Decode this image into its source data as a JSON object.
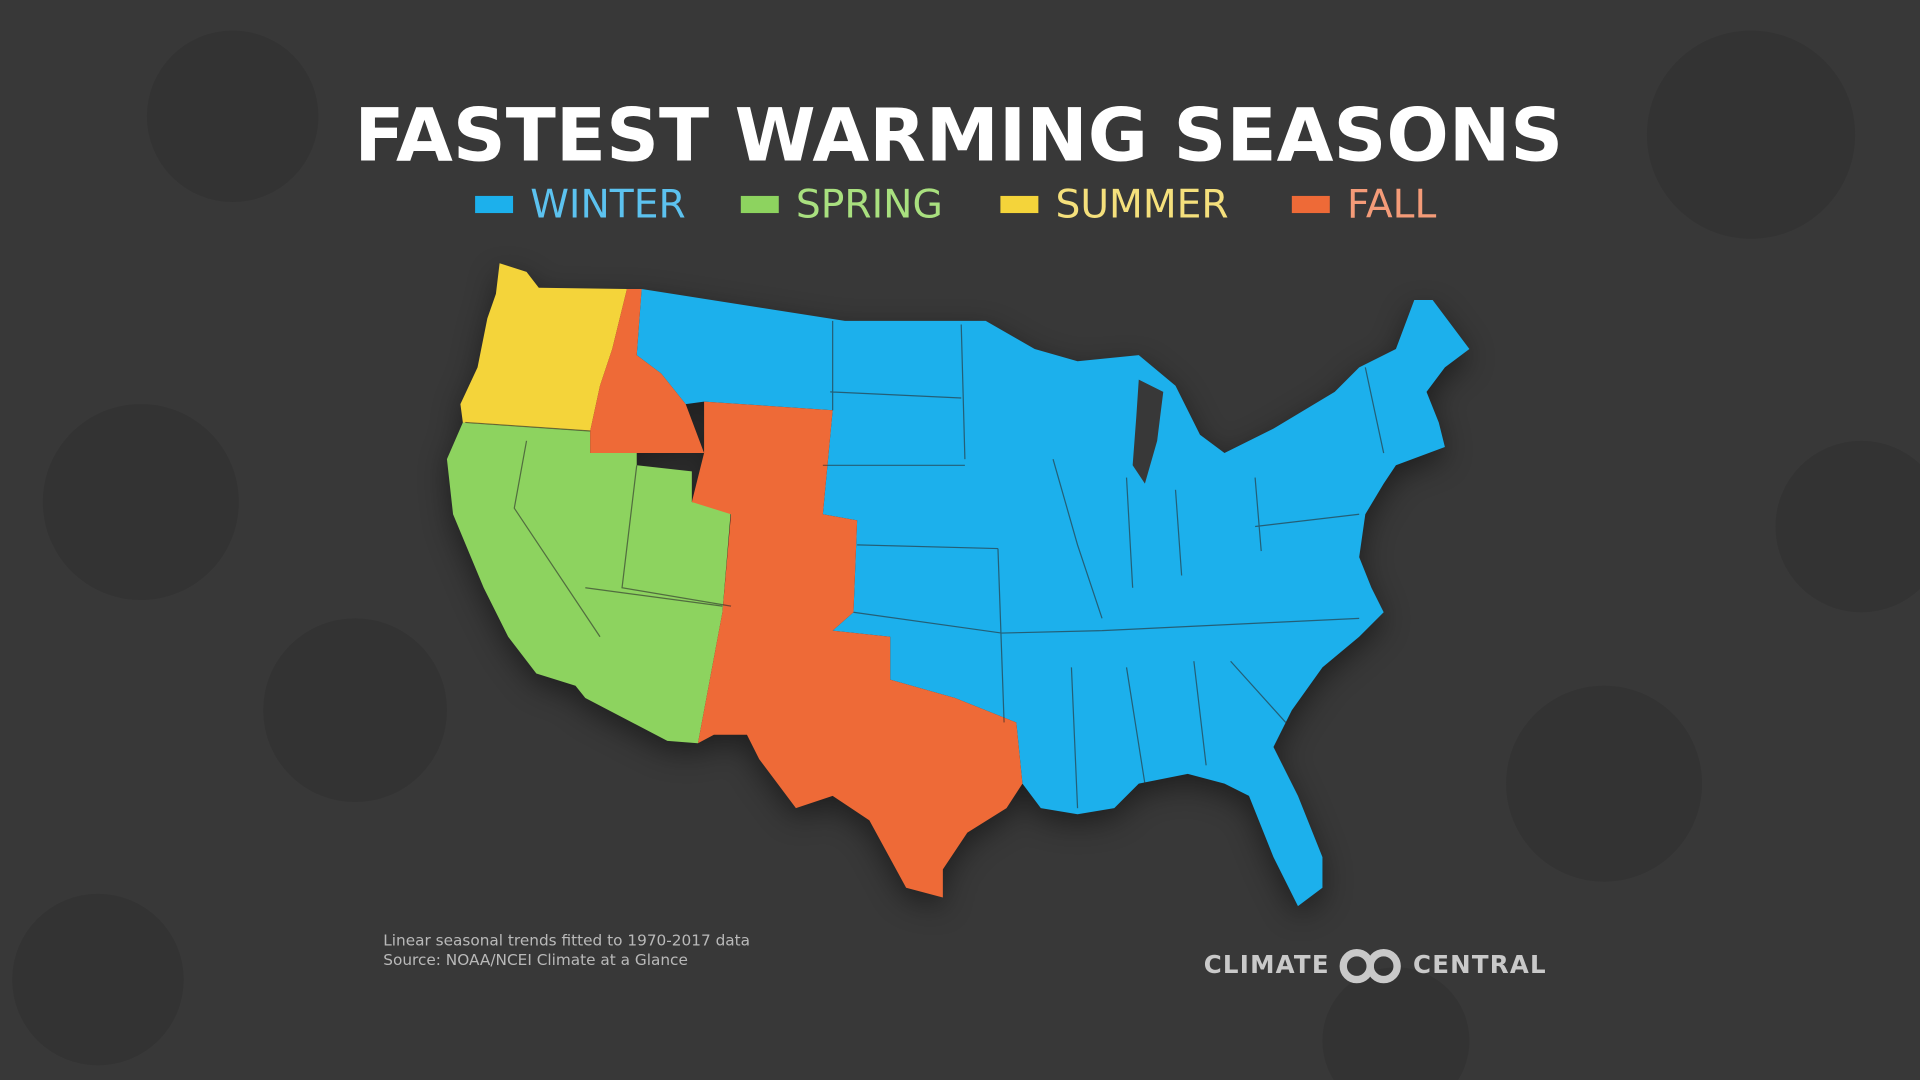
{
  "header": {
    "title": "FASTEST WARMING SEASONS"
  },
  "legend": [
    {
      "label": "WINTER",
      "color": "#1cb0ec",
      "text_color": "#5cc2ef"
    },
    {
      "label": "SPRING",
      "color": "#8dd35f",
      "text_color": "#a9e07f"
    },
    {
      "label": "SUMMER",
      "color": "#f4d43a",
      "text_color": "#f5e07c"
    },
    {
      "label": "FALL",
      "color": "#ee6a37",
      "text_color": "#f49b78"
    }
  ],
  "notes": [
    "Linear seasonal trends fitted to 1970-2017 data",
    "Source: NOAA/NCEI Climate at a Glance"
  ],
  "logo": {
    "left": "CLIMATE",
    "right": "CENTRAL"
  }
}
